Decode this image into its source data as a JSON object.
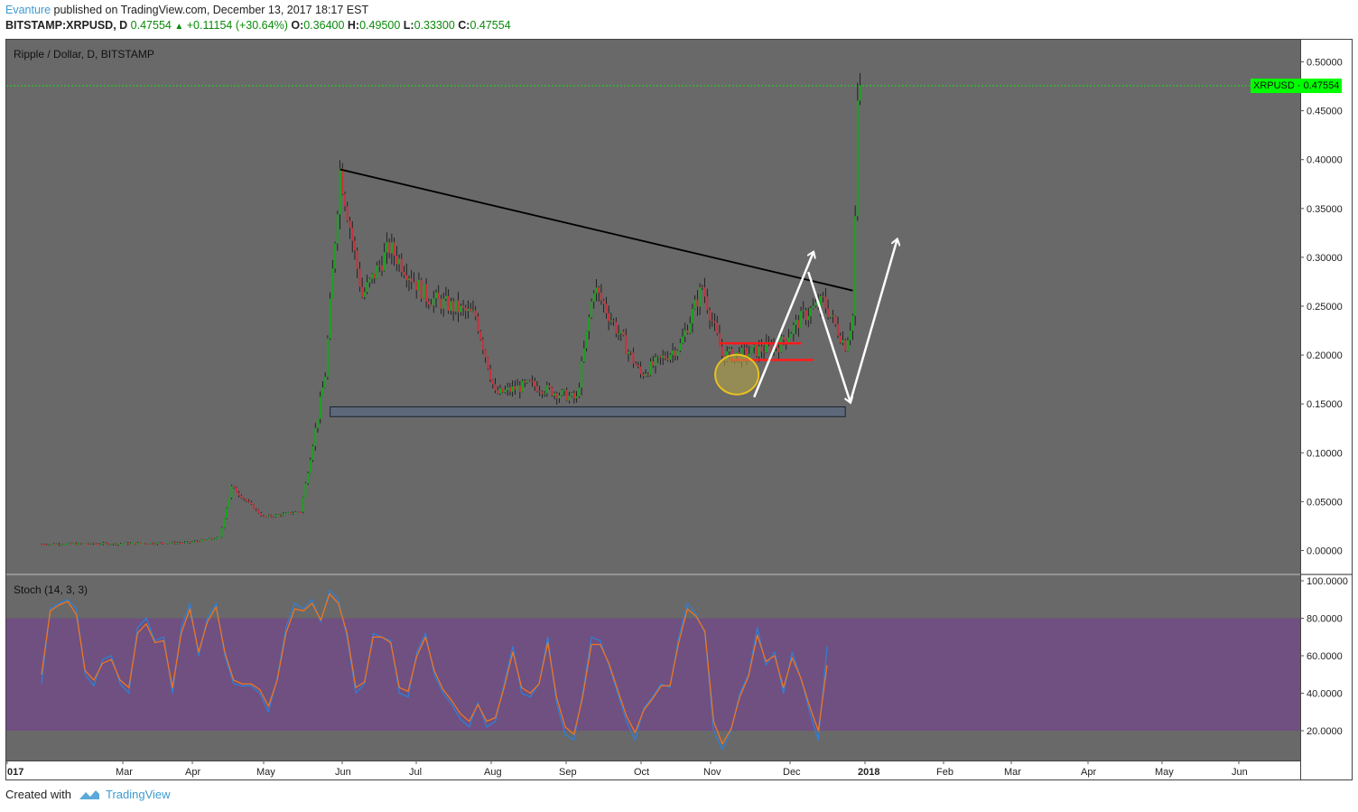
{
  "header": {
    "author": "Evanture",
    "published": "published on TradingView.com, December 13, 2017 18:17 EST",
    "symbol_line": "BITSTAMP:XRPUSD, D",
    "last": "0.47554",
    "change_arrow": "▲",
    "change": "+0.11154 (+30.64%)",
    "o_label": "O:",
    "o_value": "0.36400",
    "h_label": "H:",
    "h_value": "0.49500",
    "l_label": "L:",
    "l_value": "0.33300",
    "c_label": "C:",
    "c_value": "0.47554"
  },
  "chart_title": "Ripple / Dollar, D, BITSTAMP",
  "indicator_title": "Stoch (14, 3, 3)",
  "price_tag": "XRPUSD · 0.47554",
  "footer": {
    "created_with": "Created with",
    "brand": "TradingView"
  },
  "colors": {
    "pane_bg": "#696969",
    "up_candle": "#17a51c",
    "down_candle": "#c8323c",
    "stoch_k": "#2f7fd6",
    "stoch_d": "#f0741e",
    "stoch_band": "#6f5080",
    "price_line": "#00ff00",
    "brand": "#3d9ad1"
  },
  "chart_data": [
    {
      "type": "candlestick",
      "title": "Ripple / Dollar, D, BITSTAMP",
      "y_ticks": [
        "0.50000",
        "0.45000",
        "0.40000",
        "0.35000",
        "0.30000",
        "0.25000",
        "0.20000",
        "0.15000",
        "0.10000",
        "0.05000",
        "0.00000"
      ],
      "x_ticks": [
        "017",
        "Mar",
        "Apr",
        "May",
        "Jun",
        "Jul",
        "Aug",
        "Sep",
        "Oct",
        "Nov",
        "Dec",
        "2018",
        "Feb",
        "Mar",
        "Apr",
        "May",
        "Jun"
      ],
      "ylim": [
        -0.02,
        0.515
      ],
      "last_price": 0.47554,
      "series": [
        {
          "date": "2017-01-15",
          "close": 0.0065
        },
        {
          "date": "2017-02-15",
          "close": 0.007
        },
        {
          "date": "2017-03-15",
          "close": 0.008
        },
        {
          "date": "2017-03-28",
          "close": 0.013
        },
        {
          "date": "2017-04-02",
          "close": 0.065
        },
        {
          "date": "2017-04-15",
          "close": 0.034
        },
        {
          "date": "2017-04-30",
          "close": 0.04
        },
        {
          "date": "2017-05-10",
          "close": 0.18
        },
        {
          "date": "2017-05-16",
          "close": 0.39
        },
        {
          "date": "2017-05-25",
          "close": 0.26
        },
        {
          "date": "2017-06-05",
          "close": 0.31
        },
        {
          "date": "2017-06-20",
          "close": 0.26
        },
        {
          "date": "2017-07-10",
          "close": 0.24
        },
        {
          "date": "2017-07-18",
          "close": 0.16
        },
        {
          "date": "2017-08-01",
          "close": 0.17
        },
        {
          "date": "2017-08-20",
          "close": 0.155
        },
        {
          "date": "2017-08-27",
          "close": 0.27
        },
        {
          "date": "2017-09-15",
          "close": 0.18
        },
        {
          "date": "2017-10-01",
          "close": 0.21
        },
        {
          "date": "2017-10-10",
          "close": 0.27
        },
        {
          "date": "2017-10-18",
          "close": 0.2
        },
        {
          "date": "2017-10-25",
          "close": 0.2
        },
        {
          "date": "2017-11-10",
          "close": 0.21
        },
        {
          "date": "2017-11-20",
          "close": 0.24
        },
        {
          "date": "2017-11-28",
          "close": 0.255
        },
        {
          "date": "2017-12-07",
          "close": 0.21
        },
        {
          "date": "2017-12-10",
          "close": 0.24
        },
        {
          "date": "2017-12-11",
          "close": 0.34
        },
        {
          "date": "2017-12-12",
          "close": 0.45
        },
        {
          "date": "2017-12-13",
          "close": 0.47554
        }
      ],
      "annotations": [
        {
          "kind": "trendline",
          "from": {
            "date": "2017-05-16",
            "value": 0.39
          },
          "to": {
            "date": "2017-12-10",
            "value": 0.266
          }
        },
        {
          "kind": "support-zone",
          "from_date": "2017-05-12",
          "to_date": "2017-12-07",
          "low": 0.137,
          "high": 0.147
        },
        {
          "kind": "red-level",
          "from_date": "2017-10-17",
          "to_date": "2017-11-19",
          "value": 0.212
        },
        {
          "kind": "red-level",
          "from_date": "2017-10-21",
          "to_date": "2017-11-24",
          "value": 0.195
        },
        {
          "kind": "highlight-circle",
          "date": "2017-10-24",
          "value": 0.18
        },
        {
          "kind": "arrow-path",
          "points": [
            {
              "date": "2017-10-31",
              "value": 0.157
            },
            {
              "date": "2017-11-24",
              "value": 0.305
            }
          ]
        },
        {
          "kind": "arrow-path",
          "points": [
            {
              "date": "2017-11-22",
              "value": 0.285
            },
            {
              "date": "2017-12-09",
              "value": 0.152
            }
          ]
        },
        {
          "kind": "arrow-path",
          "points": [
            {
              "date": "2017-12-09",
              "value": 0.152
            },
            {
              "date": "2017-12-28",
              "value": 0.318
            }
          ]
        }
      ]
    },
    {
      "type": "line",
      "title": "Stoch (14, 3, 3)",
      "y_ticks": [
        "100.0000",
        "80.0000",
        "60.0000",
        "40.0000",
        "20.0000"
      ],
      "ylim": [
        3,
        103
      ],
      "band": [
        20,
        80
      ],
      "series": [
        {
          "values": [
            45,
            85,
            88,
            90,
            85,
            50,
            44,
            58,
            60,
            45,
            40,
            75,
            80,
            68,
            70,
            40,
            75,
            88,
            60,
            80,
            88,
            60,
            45,
            44,
            44,
            40,
            30,
            48,
            75,
            88,
            85,
            90,
            78,
            95,
            90,
            70,
            40,
            45,
            72,
            70,
            68,
            40,
            38,
            62,
            72,
            50,
            40,
            34,
            26,
            22,
            35,
            22,
            25,
            45,
            65,
            40,
            38,
            45,
            70,
            35,
            18,
            15,
            40,
            70,
            68,
            55,
            40,
            25,
            15,
            32,
            38,
            45,
            43,
            70,
            88,
            82,
            72,
            20,
            10,
            20,
            40,
            50,
            75,
            55,
            62,
            40,
            62,
            48,
            30,
            15,
            65
          ]
        },
        {
          "values": [
            50,
            84,
            87,
            89,
            82,
            52,
            47,
            56,
            58,
            47,
            43,
            72,
            77,
            67,
            68,
            43,
            72,
            85,
            62,
            78,
            86,
            62,
            47,
            45,
            45,
            42,
            33,
            47,
            72,
            85,
            84,
            88,
            79,
            93,
            88,
            72,
            43,
            46,
            70,
            70,
            67,
            43,
            41,
            60,
            70,
            52,
            42,
            36,
            29,
            25,
            34,
            25,
            27,
            43,
            62,
            43,
            40,
            45,
            67,
            38,
            22,
            18,
            38,
            66,
            66,
            56,
            42,
            28,
            19,
            31,
            37,
            44,
            44,
            67,
            85,
            81,
            73,
            25,
            13,
            21,
            38,
            49,
            71,
            57,
            60,
            43,
            59,
            48,
            33,
            20,
            55
          ]
        }
      ]
    }
  ]
}
